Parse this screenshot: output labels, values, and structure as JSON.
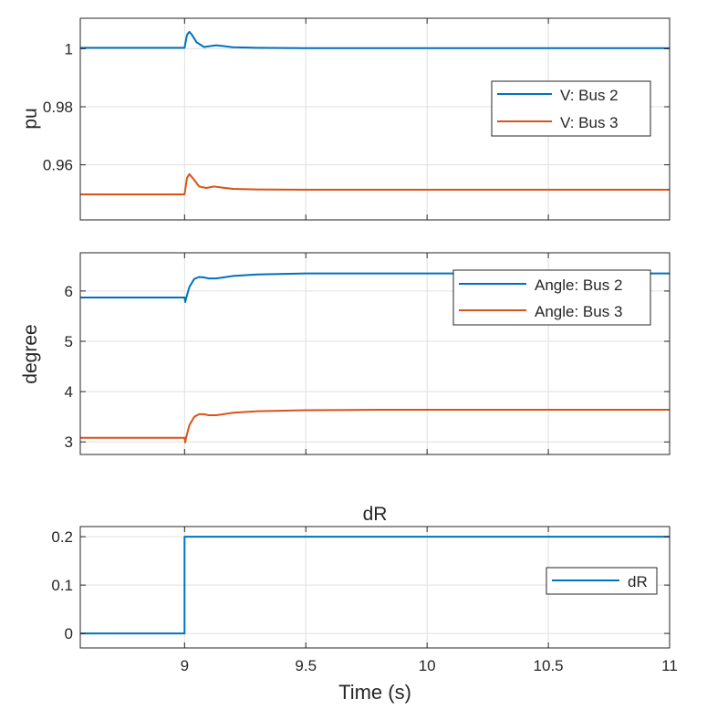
{
  "chart_data": [
    {
      "type": "line",
      "title": "",
      "ylabel": "pu",
      "xlabel": "",
      "xlim": [
        8.57,
        11
      ],
      "ylim": [
        0.941,
        1.0105
      ],
      "xticks": [
        9,
        9.5,
        10,
        10.5,
        11
      ],
      "yticks": [
        0.96,
        0.98,
        1
      ],
      "ytick_labels": [
        "0.96",
        "0.98",
        "1"
      ],
      "grid": true,
      "legend_position": "right",
      "series": [
        {
          "name": "V: Bus 2",
          "color": "#0072BD",
          "x": [
            8.57,
            9.0,
            9.005,
            9.01,
            9.02,
            9.03,
            9.05,
            9.08,
            9.1,
            9.13,
            9.16,
            9.2,
            9.3,
            9.5,
            10.0,
            10.5,
            11.0
          ],
          "y": [
            1.0003,
            1.0003,
            1.0025,
            1.0048,
            1.0058,
            1.0048,
            1.0022,
            1.0006,
            1.0008,
            1.0012,
            1.0009,
            1.0005,
            1.0003,
            1.0002,
            1.0002,
            1.0002,
            1.0002
          ]
        },
        {
          "name": "V: Bus 3",
          "color": "#D95319",
          "x": [
            8.57,
            9.0,
            9.005,
            9.01,
            9.02,
            9.04,
            9.06,
            9.09,
            9.12,
            9.16,
            9.2,
            9.3,
            9.5,
            10.0,
            10.5,
            11.0
          ],
          "y": [
            0.9498,
            0.9498,
            0.9525,
            0.9555,
            0.9568,
            0.9548,
            0.9525,
            0.952,
            0.9525,
            0.9521,
            0.9517,
            0.9515,
            0.9514,
            0.9514,
            0.9514,
            0.9514
          ]
        }
      ]
    },
    {
      "type": "line",
      "title": "",
      "ylabel": "degree",
      "xlabel": "",
      "xlim": [
        8.57,
        11
      ],
      "ylim": [
        2.75,
        6.76
      ],
      "xticks": [
        9,
        9.5,
        10,
        10.5,
        11
      ],
      "yticks": [
        3,
        4,
        5,
        6
      ],
      "ytick_labels": [
        "3",
        "4",
        "5",
        "6"
      ],
      "grid": true,
      "legend_position": "top-right",
      "series": [
        {
          "name": "Angle: Bus 2",
          "color": "#0072BD",
          "x": [
            8.57,
            9.0,
            9.003,
            9.006,
            9.02,
            9.04,
            9.06,
            9.08,
            9.1,
            9.13,
            9.16,
            9.2,
            9.3,
            9.5,
            9.8,
            10.0,
            10.5,
            11.0
          ],
          "y": [
            5.87,
            5.87,
            5.78,
            5.85,
            6.08,
            6.24,
            6.28,
            6.27,
            6.25,
            6.25,
            6.27,
            6.3,
            6.33,
            6.35,
            6.35,
            6.35,
            6.35,
            6.35
          ]
        },
        {
          "name": "Angle: Bus 3",
          "color": "#D95319",
          "x": [
            8.57,
            9.0,
            9.003,
            9.006,
            9.02,
            9.04,
            9.06,
            9.08,
            9.1,
            9.13,
            9.16,
            9.2,
            9.3,
            9.5,
            9.8,
            10.0,
            10.5,
            11.0
          ],
          "y": [
            3.08,
            3.08,
            2.99,
            3.08,
            3.33,
            3.5,
            3.55,
            3.55,
            3.53,
            3.53,
            3.55,
            3.58,
            3.61,
            3.63,
            3.64,
            3.64,
            3.64,
            3.64
          ]
        }
      ]
    },
    {
      "type": "line",
      "title": "dR",
      "ylabel": "",
      "xlabel": "Time (s)",
      "xlim": [
        8.57,
        11
      ],
      "ylim": [
        -0.03,
        0.221
      ],
      "xticks": [
        9,
        9.5,
        10,
        10.5,
        11
      ],
      "xtick_labels": [
        "9",
        "9.5",
        "10",
        "10.5",
        "11"
      ],
      "yticks": [
        0,
        0.1,
        0.2
      ],
      "ytick_labels": [
        "0",
        "0.1",
        "0.2"
      ],
      "grid": true,
      "legend_position": "right",
      "series": [
        {
          "name": "dR",
          "color": "#0072BD",
          "x": [
            8.57,
            9.0,
            9.0,
            11.0
          ],
          "y": [
            0,
            0,
            0.2,
            0.2
          ]
        }
      ]
    }
  ]
}
